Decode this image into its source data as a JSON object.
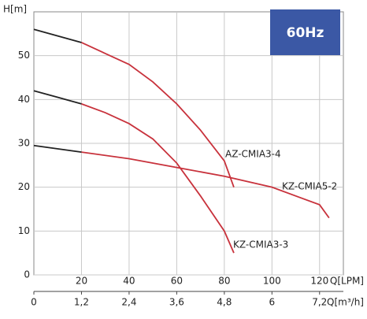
{
  "chart_data": {
    "type": "line",
    "ylabel": "H[m]",
    "xlabel": "Q[LPM]",
    "x2label": "Q[m³/h]",
    "badge": "60Hz",
    "badge_color": "#3b58a5",
    "xlim": [
      0,
      130
    ],
    "ylim": [
      0,
      60
    ],
    "xticks": [
      20,
      40,
      60,
      80,
      100,
      120
    ],
    "yticks": [
      0,
      10,
      20,
      30,
      40,
      50
    ],
    "x2ticks": [
      0,
      {
        "value": 20,
        "label": "1,2"
      },
      {
        "value": 40,
        "label": "2,4"
      },
      {
        "value": 60,
        "label": "3,6"
      },
      {
        "value": 80,
        "label": "4,8"
      },
      {
        "value": 100,
        "label": "6"
      },
      {
        "value": 120,
        "label": "7,2"
      }
    ],
    "grid": true,
    "start_color": "#222222",
    "start_until": 20,
    "series": [
      {
        "name": "AZ-CMIA3-4",
        "color": "#c8323c",
        "x": [
          0,
          10,
          20,
          30,
          40,
          50,
          60,
          70,
          80,
          84
        ],
        "values": [
          56,
          54.5,
          53,
          50.5,
          48,
          44,
          39,
          33,
          26,
          20
        ]
      },
      {
        "name": "KZ-CMIA5-2",
        "color": "#c8323c",
        "x": [
          0,
          20,
          40,
          60,
          80,
          100,
          120,
          124
        ],
        "values": [
          29.5,
          28,
          26.5,
          24.5,
          22.5,
          20,
          16,
          13
        ]
      },
      {
        "name": "KZ-CMIA3-3",
        "color": "#c8323c",
        "x": [
          0,
          10,
          20,
          30,
          40,
          50,
          60,
          70,
          80,
          84
        ],
        "values": [
          42,
          40.5,
          39,
          37,
          34.5,
          31,
          25.5,
          18,
          10,
          5
        ]
      }
    ]
  }
}
